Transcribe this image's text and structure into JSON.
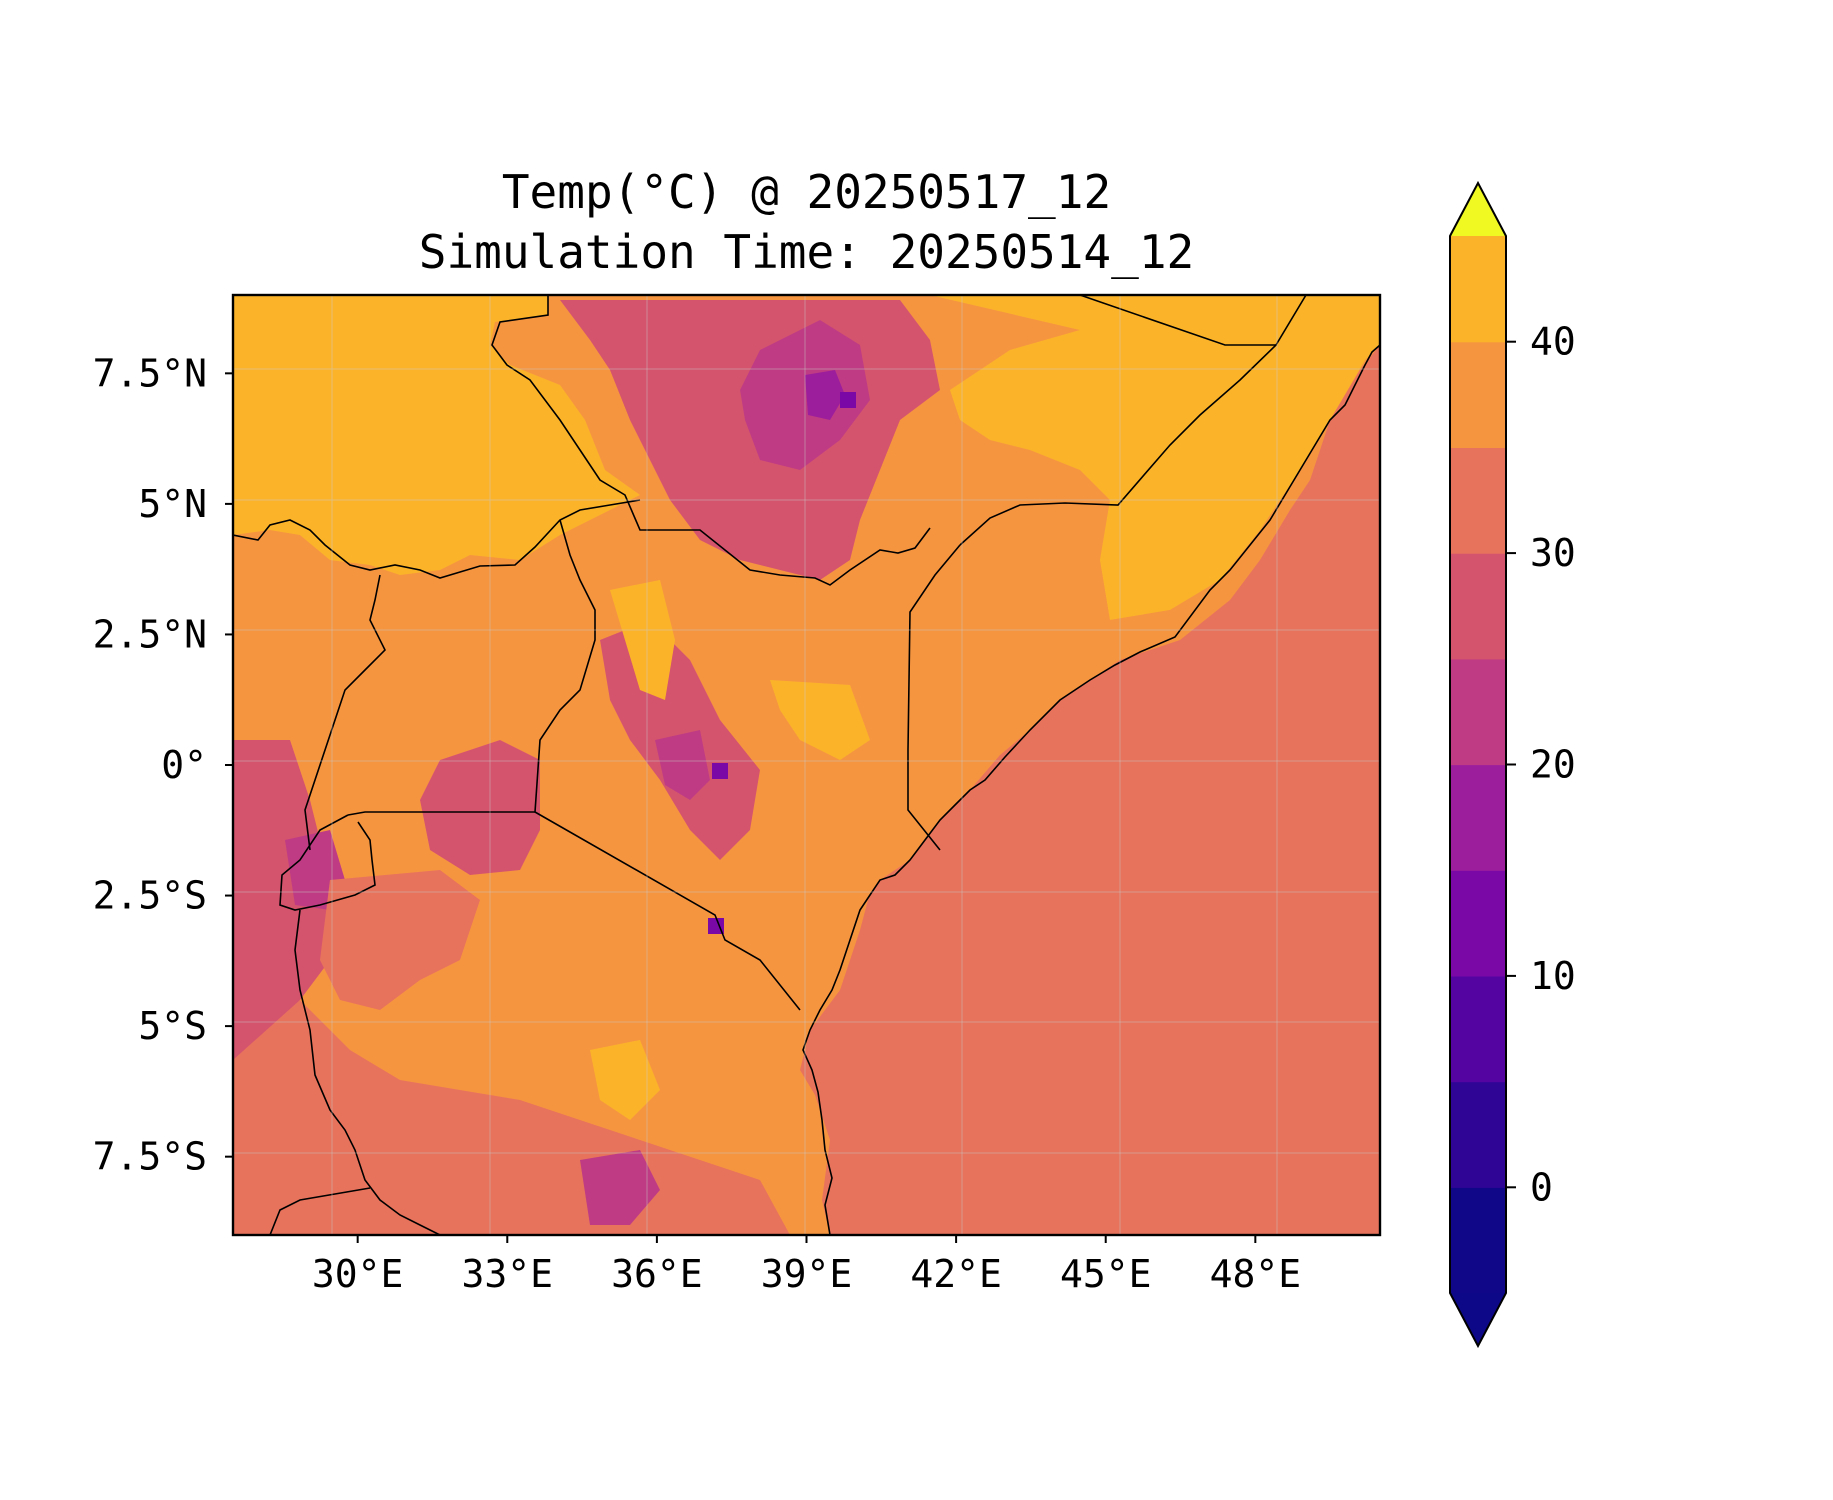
{
  "title_line_1": "Temp(°C) @ 20250517_12",
  "title_line_2": "Simulation Time: 20250514_12",
  "colors": {
    "land_hot": "#fbb42a",
    "land_warm": "#f69540",
    "ocean": "#e8735c",
    "cool_1": "#d5546d",
    "cool_2": "#bf3c84",
    "cool_3": "#9d1e9c",
    "cool_4": "#7a08a7",
    "cool_5": "#5404a0",
    "borders": "#000000"
  },
  "chart_data": {
    "type": "heatmap",
    "variable": "Temp(°C)",
    "valid_time": "20250517_12",
    "simulation_time": "20250514_12",
    "xlim": [
      27.5,
      50.5
    ],
    "ylim": [
      -9,
      9
    ],
    "x_ticks": [
      30,
      33,
      36,
      39,
      42,
      45,
      48
    ],
    "y_ticks": [
      7.5,
      5,
      2.5,
      0,
      -2.5,
      -5,
      -7.5
    ],
    "x_tick_labels": [
      "30°E",
      "33°E",
      "36°E",
      "39°E",
      "42°E",
      "45°E",
      "48°E"
    ],
    "y_tick_labels": [
      "7.5°N",
      "5°N",
      "2.5°N",
      "0°",
      "2.5°S",
      "5°S",
      "7.5°S"
    ],
    "colorbar": {
      "levels": [
        -5,
        0,
        5,
        10,
        15,
        20,
        25,
        30,
        35,
        40,
        45
      ],
      "tick_values": [
        0,
        10,
        20,
        30,
        40
      ],
      "tick_labels": [
        "0",
        "10",
        "20",
        "30",
        "40"
      ],
      "colors": [
        "#100788",
        "#2f0596",
        "#5404a0",
        "#7a08a7",
        "#9d1e9c",
        "#bf3c84",
        "#d5546d",
        "#e8735c",
        "#f69540",
        "#fbb42a",
        "#f5db27"
      ],
      "extend": "both",
      "under_color": "#0d0887",
      "over_color": "#f0f921",
      "colormap": "plasma"
    },
    "grid": true
  }
}
